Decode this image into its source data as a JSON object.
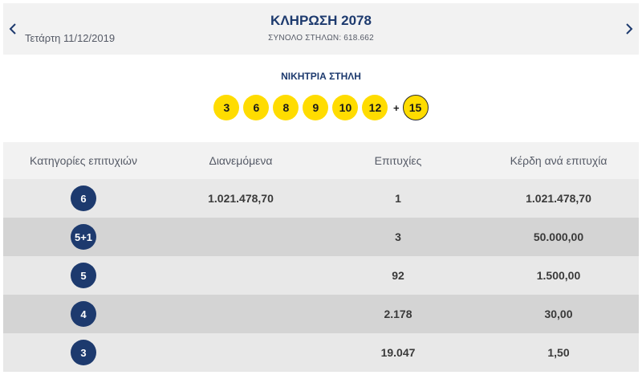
{
  "header": {
    "date": "Τετάρτη 11/12/2019",
    "title": "ΚΛΗΡΩΣΗ 2078",
    "total_columns": "ΣΥΝΟΛΟ ΣΤΗΛΩΝ: 618.662",
    "prev_icon": "chevron-left-icon",
    "next_icon": "chevron-right-icon"
  },
  "winning": {
    "title": "ΝΙΚΗΤΡΙΑ ΣΤΗΛΗ",
    "numbers": [
      "3",
      "6",
      "8",
      "9",
      "10",
      "12"
    ],
    "plus": "+",
    "bonus": "15",
    "ball_color": "#ffdc00"
  },
  "table": {
    "headers": [
      "Κατηγορίες επιτυχιών",
      "Διανεμόμενα",
      "Επιτυχίες",
      "Κέρδη ανά επιτυχία"
    ],
    "rows": [
      {
        "category": "6",
        "distributed": "1.021.478,70",
        "winners": "1",
        "prize": "1.021.478,70"
      },
      {
        "category": "5+1",
        "distributed": "",
        "winners": "3",
        "prize": "50.000,00"
      },
      {
        "category": "5",
        "distributed": "",
        "winners": "92",
        "prize": "1.500,00"
      },
      {
        "category": "4",
        "distributed": "",
        "winners": "2.178",
        "prize": "30,00"
      },
      {
        "category": "3",
        "distributed": "",
        "winners": "19.047",
        "prize": "1,50"
      }
    ]
  },
  "colors": {
    "brand_navy": "#1d3a6e",
    "header_bg": "#f2f2f2"
  }
}
